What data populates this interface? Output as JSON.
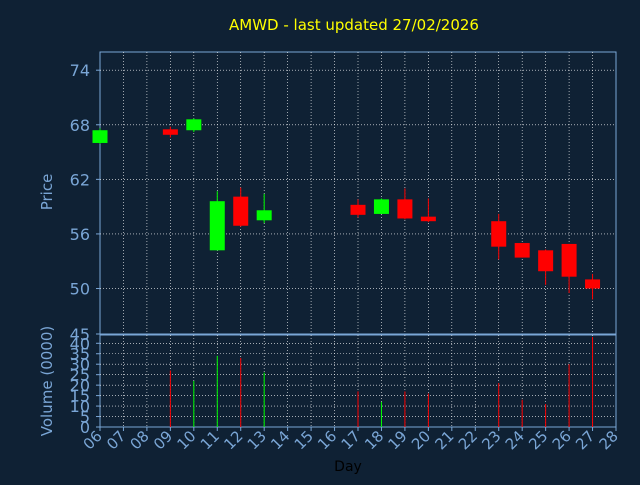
{
  "colors": {
    "background": "#0f2134",
    "title": "#ffff00",
    "axis_text": "#7aa6d6",
    "grid": "#ffffff",
    "up": "#00ff00",
    "down": "#ff0000",
    "xlabel": "#000000"
  },
  "chart_data": [
    {
      "type": "candlestick",
      "title": "AMWD - last updated 27/02/2026",
      "ylabel": "Price",
      "ylim": [
        45,
        76
      ],
      "yticks": [
        74,
        68,
        62,
        56,
        50,
        45
      ],
      "grid": true,
      "x_ticklabels": [
        "06",
        "07",
        "08",
        "09",
        "10",
        "11",
        "12",
        "13",
        "14",
        "15",
        "16",
        "17",
        "18",
        "19",
        "20",
        "21",
        "22",
        "23",
        "24",
        "25",
        "26",
        "27",
        "28"
      ],
      "candles": [
        {
          "day": "06",
          "open": 66.0,
          "close": 67.4,
          "high": 67.6,
          "low": 65.9
        },
        {
          "day": "09",
          "open": 67.5,
          "close": 66.9,
          "high": 67.8,
          "low": 66.6
        },
        {
          "day": "10",
          "open": 67.4,
          "close": 68.6,
          "high": 68.7,
          "low": 67.2
        },
        {
          "day": "11",
          "open": 54.2,
          "close": 59.6,
          "high": 60.7,
          "low": 54.2
        },
        {
          "day": "12",
          "open": 60.1,
          "close": 56.9,
          "high": 61.1,
          "low": 56.8
        },
        {
          "day": "13",
          "open": 57.5,
          "close": 58.6,
          "high": 60.4,
          "low": 57.2
        },
        {
          "day": "17",
          "open": 59.2,
          "close": 58.1,
          "high": 59.8,
          "low": 57.8
        },
        {
          "day": "18",
          "open": 58.2,
          "close": 59.8,
          "high": 59.9,
          "low": 58.2
        },
        {
          "day": "19",
          "open": 59.8,
          "close": 57.7,
          "high": 61.0,
          "low": 57.6
        },
        {
          "day": "20",
          "open": 57.9,
          "close": 57.4,
          "high": 59.9,
          "low": 57.3
        },
        {
          "day": "23",
          "open": 57.4,
          "close": 54.6,
          "high": 58.2,
          "low": 53.2
        },
        {
          "day": "24",
          "open": 55.0,
          "close": 53.4,
          "high": 55.0,
          "low": 53.4
        },
        {
          "day": "25",
          "open": 54.2,
          "close": 51.9,
          "high": 54.3,
          "low": 50.4
        },
        {
          "day": "26",
          "open": 54.9,
          "close": 51.3,
          "high": 54.9,
          "low": 49.5
        },
        {
          "day": "27",
          "open": 51.0,
          "close": 50.0,
          "high": 51.6,
          "low": 48.8
        }
      ]
    },
    {
      "type": "bar",
      "ylabel": "Volume (0000)",
      "xlabel": "Day",
      "ylim": [
        0,
        43
      ],
      "yticks": [
        0,
        5,
        10,
        15,
        20,
        25,
        30,
        35,
        40
      ],
      "grid": true,
      "bars": [
        {
          "day": "06",
          "value": 0,
          "direction": "up"
        },
        {
          "day": "09",
          "value": 27,
          "direction": "down"
        },
        {
          "day": "10",
          "value": 22,
          "direction": "up"
        },
        {
          "day": "11",
          "value": 34,
          "direction": "up"
        },
        {
          "day": "12",
          "value": 33,
          "direction": "down"
        },
        {
          "day": "13",
          "value": 26,
          "direction": "up"
        },
        {
          "day": "17",
          "value": 17,
          "direction": "down"
        },
        {
          "day": "18",
          "value": 12,
          "direction": "up"
        },
        {
          "day": "19",
          "value": 17,
          "direction": "down"
        },
        {
          "day": "20",
          "value": 16,
          "direction": "down"
        },
        {
          "day": "23",
          "value": 21,
          "direction": "down"
        },
        {
          "day": "24",
          "value": 13,
          "direction": "down"
        },
        {
          "day": "25",
          "value": 11,
          "direction": "down"
        },
        {
          "day": "26",
          "value": 30,
          "direction": "down"
        },
        {
          "day": "27",
          "value": 43,
          "direction": "down"
        }
      ]
    }
  ]
}
